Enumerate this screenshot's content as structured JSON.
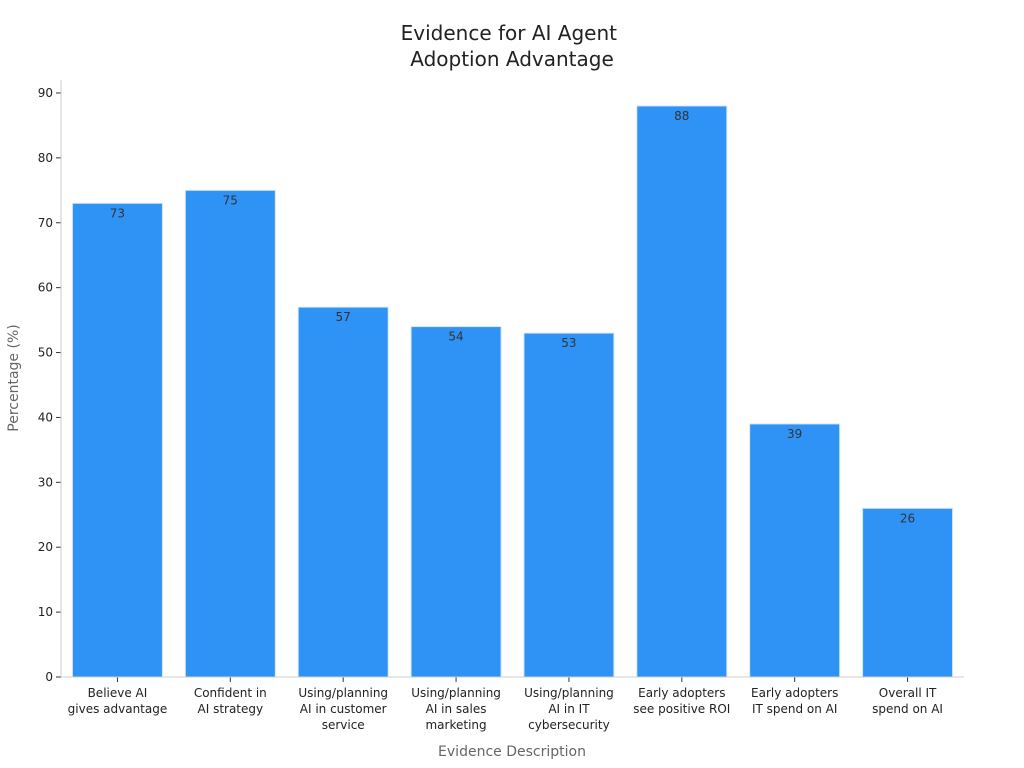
{
  "chart_data": {
    "type": "bar",
    "title": [
      "Evidence for AI Agent",
      "Adoption Advantage"
    ],
    "xlabel": "Evidence Description",
    "ylabel": "Percentage (%)",
    "ylim": [
      0,
      92
    ],
    "yticks": [
      "0",
      "10",
      "20",
      "30",
      "40",
      "50",
      "60",
      "70",
      "80",
      "90"
    ],
    "grid": false,
    "bar_color": "#2f93f6",
    "categories": [
      [
        "Believe AI",
        "gives advantage"
      ],
      [
        "Confident in",
        "AI strategy"
      ],
      [
        "Using/planning",
        "AI in customer",
        "service"
      ],
      [
        "Using/planning",
        "AI in sales",
        "marketing"
      ],
      [
        "Using/planning",
        "AI in IT",
        "cybersecurity"
      ],
      [
        "Early adopters",
        "see positive ROI"
      ],
      [
        "Early adopters",
        "IT spend on AI"
      ],
      [
        "Overall IT",
        "spend on AI"
      ]
    ],
    "values": [
      73,
      75,
      57,
      54,
      53,
      88,
      39,
      26
    ],
    "data_labels": [
      "73",
      "75",
      "57",
      "54",
      "53",
      "88",
      "39",
      "26"
    ]
  }
}
